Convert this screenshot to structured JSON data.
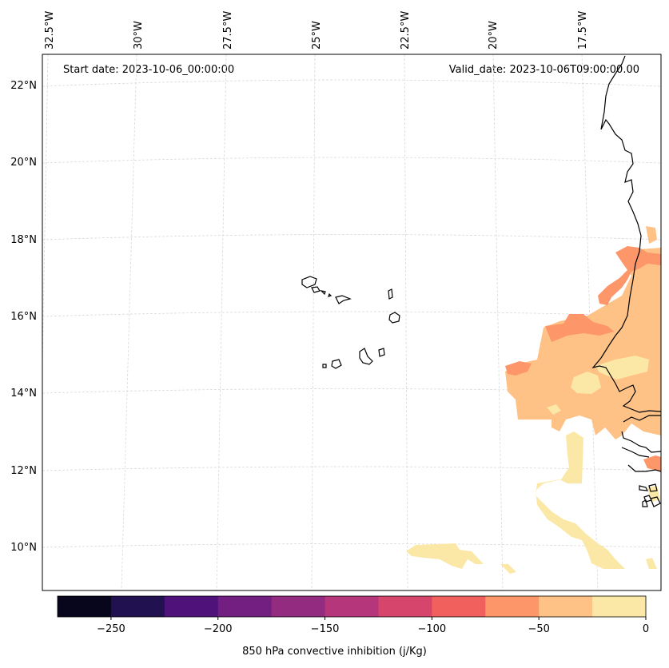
{
  "header": {
    "start_date": "Start date: 2023-10-06_00:00:00",
    "valid_date": "Valid_date: 2023-10-06T09:00:00.00"
  },
  "longitude_labels": [
    "32.5°W",
    "30°W",
    "27.5°W",
    "25°W",
    "22.5°W",
    "20°W",
    "17.5°W"
  ],
  "latitude_labels": [
    "22°N",
    "20°N",
    "18°N",
    "16°N",
    "14°N",
    "12°N",
    "10°N"
  ],
  "colorbar": {
    "label": "850 hPa convective inhibition (j/Kg)",
    "tick_labels": [
      "−250",
      "−200",
      "−150",
      "−100",
      "−50",
      "0"
    ],
    "bounds": [
      -275,
      -250,
      -225,
      -200,
      -175,
      -150,
      -125,
      -100,
      -75,
      -50,
      -25,
      0
    ],
    "colors": [
      "#07061c",
      "#221150",
      "#4f127b",
      "#721f81",
      "#932b80",
      "#b5367a",
      "#d6456c",
      "#f1605d",
      "#fd9668",
      "#fec287",
      "#fce8a6"
    ]
  },
  "colors": {
    "ocean": "#ffffff",
    "coastline": "#000000",
    "gridline": "#d9d9d9"
  }
}
